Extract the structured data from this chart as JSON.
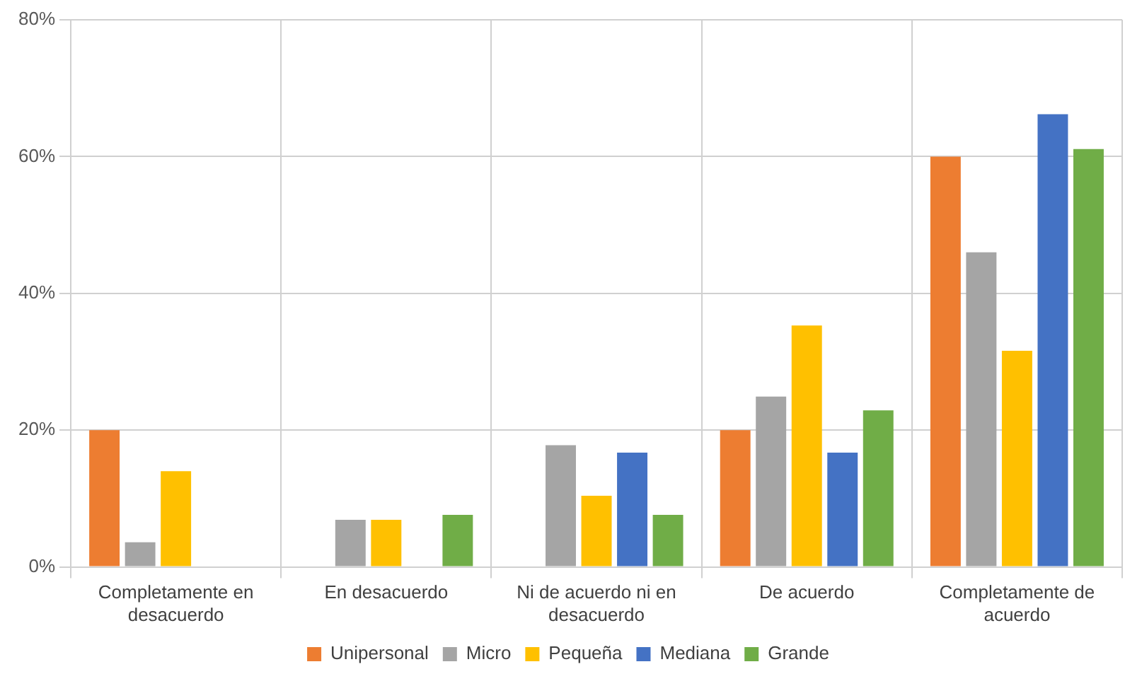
{
  "chart_data": {
    "type": "bar",
    "categories": [
      [
        "Completamente en",
        "desacuerdo"
      ],
      [
        "En desacuerdo"
      ],
      [
        "Ni de acuerdo ni en",
        "desacuerdo"
      ],
      [
        "De acuerdo"
      ],
      [
        "Completamente de",
        "acuerdo"
      ]
    ],
    "series": [
      {
        "name": "Unipersonal",
        "color": "#ed7d31",
        "values": [
          20,
          0,
          0,
          20,
          60
        ]
      },
      {
        "name": "Micro",
        "color": "#a5a5a5",
        "values": [
          3.6,
          6.9,
          17.8,
          24.9,
          46
        ]
      },
      {
        "name": "Pequeña",
        "color": "#ffc000",
        "values": [
          14,
          6.9,
          10.4,
          35.3,
          31.6
        ]
      },
      {
        "name": "Mediana",
        "color": "#4472c4",
        "values": [
          0,
          0,
          16.7,
          16.7,
          66.2
        ]
      },
      {
        "name": "Grande",
        "color": "#70ad47",
        "values": [
          0,
          7.6,
          7.6,
          22.9,
          61.1
        ]
      }
    ],
    "ylim": [
      0,
      80
    ],
    "yticks": [
      {
        "value": 0,
        "label": "0%"
      },
      {
        "value": 20,
        "label": "20%"
      },
      {
        "value": 40,
        "label": "40%"
      },
      {
        "value": 60,
        "label": "60%"
      },
      {
        "value": 80,
        "label": "80%"
      }
    ],
    "grid": true,
    "legend": "bottom"
  }
}
